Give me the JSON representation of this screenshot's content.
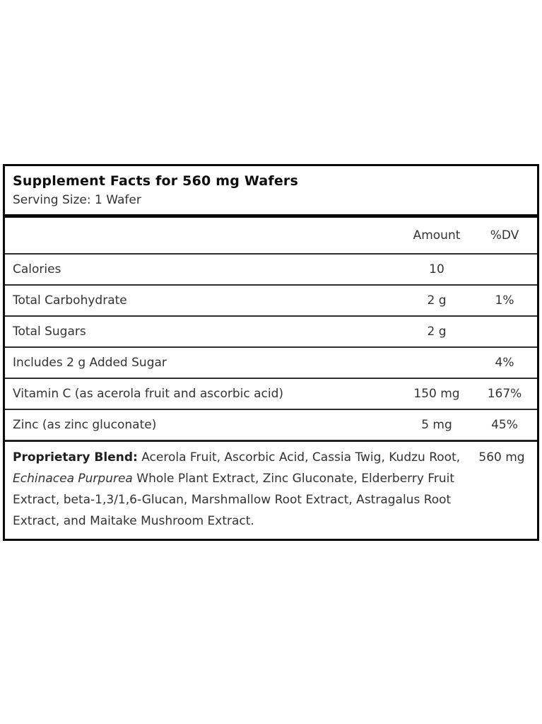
{
  "label": {
    "title": "Supplement Facts for 560 mg Wafers",
    "serving_size": "Serving Size: 1 Wafer",
    "columns": {
      "amount": "Amount",
      "dv": "%DV"
    },
    "rows": [
      {
        "name": "Calories",
        "amount": "10",
        "dv": ""
      },
      {
        "name": "Total Carbohydrate",
        "amount": "2 g",
        "dv": "1%"
      },
      {
        "name": "Total Sugars",
        "amount": "2 g",
        "dv": ""
      },
      {
        "name": "Includes 2 g Added Sugar",
        "amount": "",
        "dv": "4%"
      },
      {
        "name": "Vitamin C (as acerola fruit and ascorbic acid)",
        "amount": "150 mg",
        "dv": "167%"
      },
      {
        "name": "Zinc (as zinc gluconate)",
        "amount": "5 mg",
        "dv": "45%"
      }
    ],
    "proprietary_blend": {
      "label": "Proprietary Blend:",
      "text_before_italic": "Acerola Fruit, Ascorbic Acid, Cassia Twig, Kudzu Root,",
      "italic": "Echinacea Purpurea",
      "text_after_italic": "Whole Plant Extract, Zinc Gluconate, Elderberry Fruit Extract, beta-1,3/1,6-Glucan, Marshmallow Root Extract, Astragalus Root Extract, and Maitake Mushroom Extract.",
      "amount": "560 mg"
    },
    "colors": {
      "box_border": "#0a0a0a",
      "title_text": "#0d0d0d",
      "body_text": "#333333"
    }
  }
}
